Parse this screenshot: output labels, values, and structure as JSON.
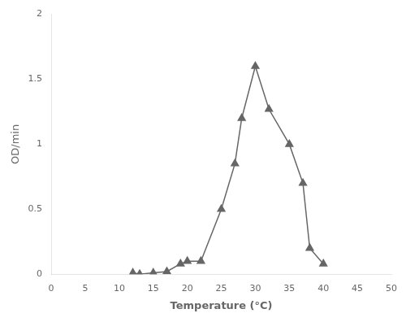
{
  "chart_data": {
    "type": "line",
    "xlabel": "Temperature (°C)",
    "ylabel": "OD/min",
    "x": [
      12,
      13,
      15,
      17,
      19,
      20,
      22,
      25,
      27,
      28,
      30,
      32,
      35,
      37,
      38,
      40
    ],
    "values": [
      0.01,
      0.0,
      0.01,
      0.02,
      0.08,
      0.1,
      0.1,
      0.5,
      0.85,
      1.2,
      1.6,
      1.27,
      1.0,
      0.7,
      0.2,
      0.08
    ],
    "color": "#666666",
    "marker": "triangle",
    "xlim": [
      0,
      50
    ],
    "ylim": [
      0,
      2
    ],
    "xticks": [
      0,
      5,
      10,
      15,
      20,
      25,
      30,
      35,
      40,
      45,
      50
    ],
    "yticks": [
      0,
      0.5,
      1,
      1.5,
      2
    ],
    "grid": false
  }
}
